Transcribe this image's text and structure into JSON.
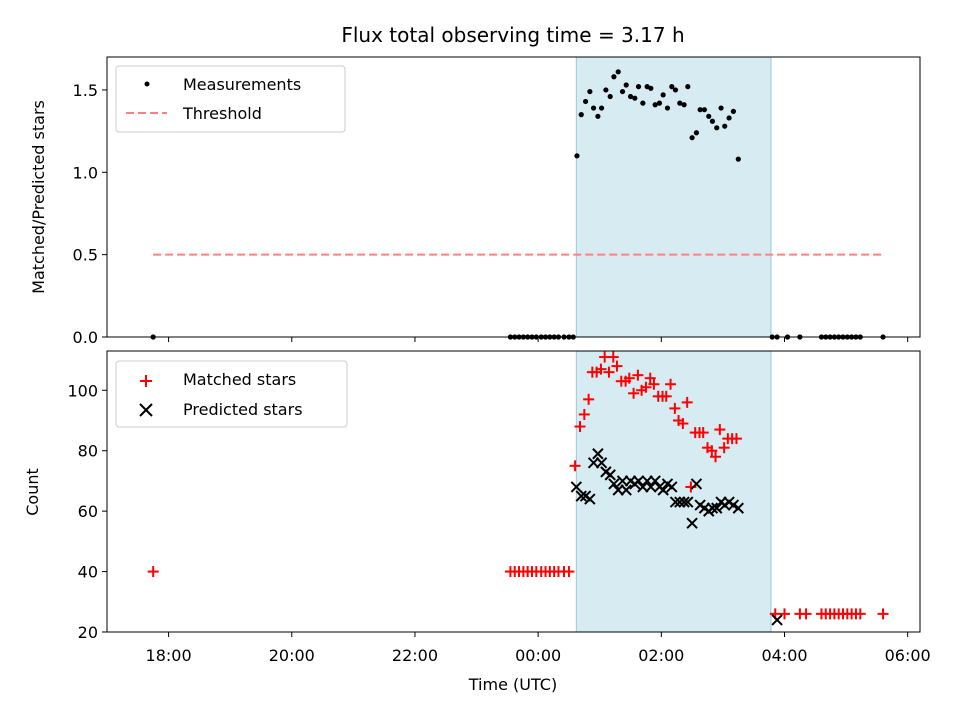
{
  "chart_data": {
    "type": "scatter",
    "title": "Flux total observing time = 3.17 h",
    "xlabel": "Time (UTC)",
    "xlim_hours": [
      -7.0,
      6.2
    ],
    "xtick_hours": [
      -6,
      -4,
      -2,
      0,
      2,
      4,
      6
    ],
    "xtick_labels": [
      "18:00",
      "20:00",
      "22:00",
      "00:00",
      "02:00",
      "04:00",
      "06:00"
    ],
    "shaded_region_hours": [
      0.62,
      3.78
    ],
    "shade_color": "#add8e6",
    "panels": [
      {
        "name": "ratio",
        "ylabel": "Matched/Predicted stars",
        "ylim": [
          0,
          1.7
        ],
        "yticks": [
          0.0,
          0.5,
          1.0,
          1.5
        ],
        "ytick_labels": [
          "0.0",
          "0.5",
          "1.0",
          "1.5"
        ],
        "legend": [
          "Measurements",
          "Threshold"
        ],
        "series": [
          {
            "name": "Measurements",
            "marker": "dot",
            "color": "#000000",
            "points": [
              [
                -6.25,
                0
              ],
              [
                -0.45,
                0
              ],
              [
                -0.38,
                0
              ],
              [
                -0.31,
                0
              ],
              [
                -0.24,
                0
              ],
              [
                -0.17,
                0
              ],
              [
                -0.1,
                0
              ],
              [
                -0.03,
                0
              ],
              [
                0.05,
                0
              ],
              [
                0.12,
                0
              ],
              [
                0.19,
                0
              ],
              [
                0.26,
                0
              ],
              [
                0.33,
                0
              ],
              [
                0.42,
                0
              ],
              [
                0.5,
                0
              ],
              [
                0.57,
                0
              ],
              [
                0.63,
                1.1
              ],
              [
                0.7,
                1.35
              ],
              [
                0.77,
                1.43
              ],
              [
                0.84,
                1.49
              ],
              [
                0.9,
                1.39
              ],
              [
                0.97,
                1.34
              ],
              [
                1.03,
                1.39
              ],
              [
                1.1,
                1.5
              ],
              [
                1.17,
                1.46
              ],
              [
                1.23,
                1.58
              ],
              [
                1.3,
                1.61
              ],
              [
                1.37,
                1.49
              ],
              [
                1.43,
                1.53
              ],
              [
                1.5,
                1.46
              ],
              [
                1.57,
                1.45
              ],
              [
                1.63,
                1.52
              ],
              [
                1.7,
                1.42
              ],
              [
                1.77,
                1.52
              ],
              [
                1.83,
                1.51
              ],
              [
                1.9,
                1.41
              ],
              [
                1.97,
                1.42
              ],
              [
                2.03,
                1.47
              ],
              [
                2.1,
                1.39
              ],
              [
                2.17,
                1.52
              ],
              [
                2.23,
                1.5
              ],
              [
                2.3,
                1.42
              ],
              [
                2.37,
                1.41
              ],
              [
                2.43,
                1.52
              ],
              [
                2.5,
                1.21
              ],
              [
                2.57,
                1.24
              ],
              [
                2.63,
                1.38
              ],
              [
                2.7,
                1.38
              ],
              [
                2.77,
                1.34
              ],
              [
                2.83,
                1.31
              ],
              [
                2.9,
                1.27
              ],
              [
                2.97,
                1.39
              ],
              [
                3.03,
                1.28
              ],
              [
                3.1,
                1.33
              ],
              [
                3.17,
                1.37
              ],
              [
                3.25,
                1.08
              ],
              [
                3.8,
                0
              ],
              [
                3.88,
                0
              ],
              [
                4.05,
                0
              ],
              [
                4.25,
                0
              ],
              [
                4.6,
                0
              ],
              [
                4.67,
                0
              ],
              [
                4.74,
                0
              ],
              [
                4.81,
                0
              ],
              [
                4.88,
                0
              ],
              [
                4.95,
                0
              ],
              [
                5.02,
                0
              ],
              [
                5.09,
                0
              ],
              [
                5.16,
                0
              ],
              [
                5.23,
                0
              ],
              [
                5.6,
                0
              ]
            ]
          },
          {
            "name": "Threshold",
            "marker": "dashed-line",
            "color": "#ff8080",
            "points": [
              [
                -6.25,
                0.5
              ],
              [
                5.6,
                0.5
              ]
            ]
          }
        ]
      },
      {
        "name": "counts",
        "ylabel": "Count",
        "ylim": [
          20,
          113
        ],
        "yticks": [
          20,
          40,
          60,
          80,
          100
        ],
        "ytick_labels": [
          "20",
          "40",
          "60",
          "80",
          "100"
        ],
        "legend": [
          "Matched stars",
          "Predicted stars"
        ],
        "series": [
          {
            "name": "Matched stars",
            "marker": "plus",
            "color": "#ff0000",
            "points": [
              [
                -6.25,
                40
              ],
              [
                -0.45,
                40
              ],
              [
                -0.38,
                40
              ],
              [
                -0.31,
                40
              ],
              [
                -0.24,
                40
              ],
              [
                -0.17,
                40
              ],
              [
                -0.1,
                40
              ],
              [
                -0.03,
                40
              ],
              [
                0.05,
                40
              ],
              [
                0.12,
                40
              ],
              [
                0.19,
                40
              ],
              [
                0.26,
                40
              ],
              [
                0.33,
                40
              ],
              [
                0.42,
                40
              ],
              [
                0.5,
                40
              ],
              [
                0.6,
                75
              ],
              [
                0.68,
                88
              ],
              [
                0.75,
                92
              ],
              [
                0.82,
                97
              ],
              [
                0.88,
                106
              ],
              [
                0.95,
                106
              ],
              [
                1.02,
                107
              ],
              [
                1.08,
                111
              ],
              [
                1.15,
                106
              ],
              [
                1.22,
                111
              ],
              [
                1.28,
                108
              ],
              [
                1.35,
                103
              ],
              [
                1.42,
                103
              ],
              [
                1.48,
                104
              ],
              [
                1.55,
                99
              ],
              [
                1.62,
                105
              ],
              [
                1.68,
                100
              ],
              [
                1.75,
                101
              ],
              [
                1.82,
                104
              ],
              [
                1.88,
                102
              ],
              [
                1.95,
                98
              ],
              [
                2.02,
                98
              ],
              [
                2.08,
                98
              ],
              [
                2.15,
                102
              ],
              [
                2.22,
                94
              ],
              [
                2.28,
                90
              ],
              [
                2.35,
                89
              ],
              [
                2.42,
                96
              ],
              [
                2.48,
                68
              ],
              [
                2.55,
                86
              ],
              [
                2.62,
                86
              ],
              [
                2.68,
                86
              ],
              [
                2.75,
                81
              ],
              [
                2.82,
                80
              ],
              [
                2.88,
                78
              ],
              [
                2.95,
                87
              ],
              [
                3.02,
                81
              ],
              [
                3.08,
                84
              ],
              [
                3.15,
                84
              ],
              [
                3.22,
                84
              ],
              [
                3.85,
                26
              ],
              [
                4.0,
                26
              ],
              [
                4.25,
                26
              ],
              [
                4.35,
                26
              ],
              [
                4.6,
                26
              ],
              [
                4.67,
                26
              ],
              [
                4.74,
                26
              ],
              [
                4.81,
                26
              ],
              [
                4.88,
                26
              ],
              [
                4.95,
                26
              ],
              [
                5.02,
                26
              ],
              [
                5.09,
                26
              ],
              [
                5.16,
                26
              ],
              [
                5.23,
                26
              ],
              [
                5.6,
                26
              ]
            ]
          },
          {
            "name": "Predicted stars",
            "marker": "x",
            "color": "#000000",
            "points": [
              [
                0.62,
                68
              ],
              [
                0.7,
                65
              ],
              [
                0.77,
                65
              ],
              [
                0.84,
                64
              ],
              [
                0.9,
                76
              ],
              [
                0.97,
                79
              ],
              [
                1.03,
                76
              ],
              [
                1.1,
                73
              ],
              [
                1.17,
                72
              ],
              [
                1.23,
                69
              ],
              [
                1.3,
                67
              ],
              [
                1.37,
                70
              ],
              [
                1.43,
                67
              ],
              [
                1.5,
                70
              ],
              [
                1.57,
                69
              ],
              [
                1.63,
                70
              ],
              [
                1.7,
                68
              ],
              [
                1.77,
                70
              ],
              [
                1.83,
                68
              ],
              [
                1.9,
                70
              ],
              [
                1.97,
                68
              ],
              [
                2.03,
                67
              ],
              [
                2.1,
                69
              ],
              [
                2.17,
                68
              ],
              [
                2.23,
                63
              ],
              [
                2.3,
                63
              ],
              [
                2.37,
                63
              ],
              [
                2.43,
                63
              ],
              [
                2.5,
                56
              ],
              [
                2.57,
                69
              ],
              [
                2.63,
                62
              ],
              [
                2.7,
                61
              ],
              [
                2.77,
                60
              ],
              [
                2.83,
                61
              ],
              [
                2.9,
                61
              ],
              [
                2.97,
                63
              ],
              [
                3.03,
                62
              ],
              [
                3.1,
                63
              ],
              [
                3.17,
                62
              ],
              [
                3.25,
                61
              ],
              [
                3.88,
                24
              ]
            ]
          }
        ]
      }
    ]
  }
}
